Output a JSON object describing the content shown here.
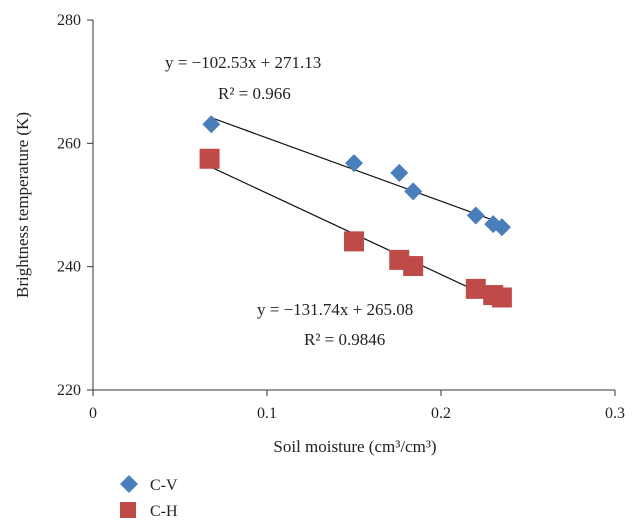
{
  "chart_data": {
    "type": "scatter",
    "title": "",
    "xlabel": "Soil moisture (cm³/cm³)",
    "ylabel": "Brightness temperature (K)",
    "xlim": [
      0,
      0.3
    ],
    "ylim": [
      220,
      280
    ],
    "x_ticks": [
      "0",
      "0.1",
      "0.2",
      "0.3"
    ],
    "y_ticks": [
      "220",
      "240",
      "260",
      "280"
    ],
    "grid": false,
    "legend_position": "bottom-left",
    "series": [
      {
        "name": "C-V",
        "marker": "diamond",
        "color": "#4a7ebb",
        "points": [
          {
            "x": 0.068,
            "y": 263.1
          },
          {
            "x": 0.15,
            "y": 256.8
          },
          {
            "x": 0.176,
            "y": 255.2
          },
          {
            "x": 0.184,
            "y": 252.2
          },
          {
            "x": 0.22,
            "y": 248.3
          },
          {
            "x": 0.23,
            "y": 246.9
          },
          {
            "x": 0.235,
            "y": 246.4
          }
        ],
        "trendline": {
          "slope": -102.53,
          "intercept": 271.13,
          "x_range": [
            0.068,
            0.235
          ]
        },
        "equation": "y = −102.53x + 271.13",
        "r2": "R² = 0.966"
      },
      {
        "name": "C-H",
        "marker": "square",
        "color": "#be4b48",
        "points": [
          {
            "x": 0.067,
            "y": 257.5
          },
          {
            "x": 0.15,
            "y": 244.1
          },
          {
            "x": 0.176,
            "y": 241.1
          },
          {
            "x": 0.184,
            "y": 240.1
          },
          {
            "x": 0.22,
            "y": 236.4
          },
          {
            "x": 0.23,
            "y": 235.4
          },
          {
            "x": 0.235,
            "y": 235.0
          }
        ],
        "trendline": {
          "slope": -131.74,
          "intercept": 265.08,
          "x_range": [
            0.067,
            0.235
          ]
        },
        "equation": "y = −131.74x + 265.08",
        "r2": "R² = 0.9846"
      }
    ]
  }
}
